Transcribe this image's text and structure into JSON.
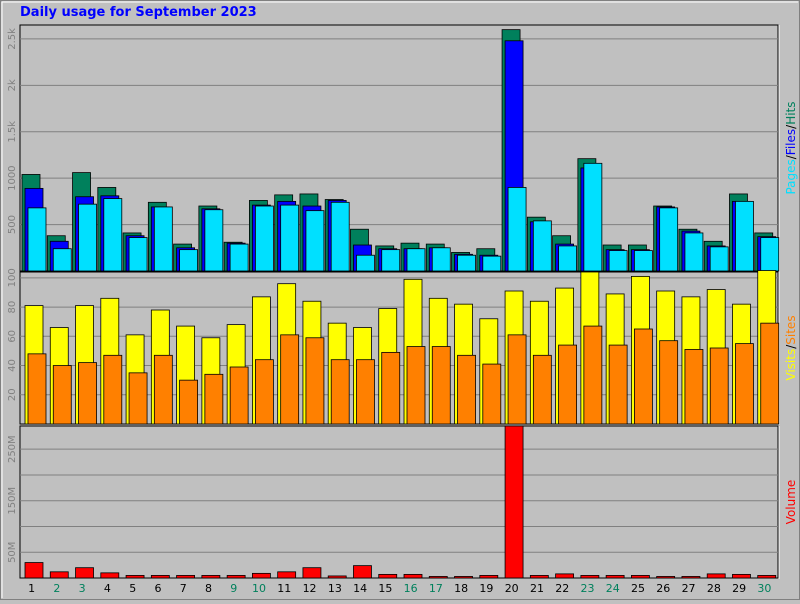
{
  "title": "Daily usage for September 2023",
  "colors": {
    "hits": "#00805c",
    "files": "#0000ff",
    "pages": "#00e0ff",
    "visits": "#ffff00",
    "sites": "#ff8000",
    "volume": "#ff0000",
    "weekend_label": "#00805c",
    "background": "#c0c0c0"
  },
  "chart_data": [
    {
      "type": "bar",
      "panel": "hits-files-pages",
      "legend": [
        {
          "text": "Pages",
          "color": "#00e0ff"
        },
        {
          "text": "/",
          "color": "#000000"
        },
        {
          "text": "Files",
          "color": "#0000ff"
        },
        {
          "text": "/",
          "color": "#000000"
        },
        {
          "text": "Hits",
          "color": "#00805c"
        }
      ],
      "ylim": [
        0,
        2650
      ],
      "yticks": [
        500,
        1000,
        1500,
        2000,
        2500
      ],
      "ytick_labels": [
        "500",
        "1000",
        "1.5k",
        "2k",
        "2.5k"
      ],
      "grid": true,
      "series": [
        {
          "name": "Hits",
          "values": [
            1040,
            380,
            1060,
            900,
            410,
            740,
            290,
            700,
            310,
            760,
            820,
            830,
            770,
            450,
            270,
            300,
            290,
            200,
            240,
            2600,
            580,
            380,
            1210,
            280,
            280,
            700,
            450,
            320,
            830,
            410
          ]
        },
        {
          "name": "Files",
          "values": [
            890,
            320,
            800,
            810,
            380,
            690,
            250,
            670,
            300,
            710,
            750,
            700,
            760,
            280,
            240,
            240,
            250,
            180,
            170,
            2480,
            530,
            290,
            1110,
            230,
            230,
            690,
            430,
            270,
            750,
            370
          ]
        },
        {
          "name": "Pages",
          "values": [
            680,
            240,
            720,
            780,
            360,
            690,
            230,
            660,
            290,
            700,
            710,
            650,
            740,
            170,
            230,
            240,
            250,
            170,
            160,
            900,
            540,
            270,
            1160,
            220,
            220,
            680,
            410,
            260,
            750,
            360
          ]
        }
      ]
    },
    {
      "type": "bar",
      "panel": "visits-sites",
      "legend": [
        {
          "text": "Visits",
          "color": "#ffff00"
        },
        {
          "text": "/",
          "color": "#000000"
        },
        {
          "text": "Sites",
          "color": "#ff8000"
        }
      ],
      "ylim": [
        0,
        104
      ],
      "yticks": [
        20,
        40,
        60,
        80,
        100
      ],
      "ytick_labels": [
        "20",
        "40",
        "60",
        "80",
        "100"
      ],
      "grid": true,
      "series": [
        {
          "name": "Visits",
          "values": [
            81,
            66,
            81,
            86,
            61,
            78,
            67,
            59,
            68,
            87,
            96,
            84,
            69,
            66,
            79,
            99,
            86,
            82,
            72,
            91,
            84,
            93,
            104,
            89,
            101,
            91,
            87,
            92,
            82,
            105
          ]
        },
        {
          "name": "Sites",
          "values": [
            48,
            40,
            42,
            47,
            35,
            47,
            30,
            34,
            39,
            44,
            61,
            59,
            44,
            44,
            49,
            53,
            53,
            47,
            41,
            61,
            47,
            54,
            67,
            54,
            65,
            57,
            51,
            52,
            55,
            69
          ]
        }
      ]
    },
    {
      "type": "bar",
      "panel": "volume",
      "legend": [
        {
          "text": "Volume",
          "color": "#ff0000"
        }
      ],
      "ylim": [
        0,
        295
      ],
      "yticks": [
        50,
        100,
        150,
        200,
        250
      ],
      "ytick_labels": [
        "50M",
        "",
        "150M",
        "",
        "250M"
      ],
      "grid": true,
      "series": [
        {
          "name": "Volume",
          "values": [
            30,
            12,
            20,
            10,
            5,
            5,
            5,
            5,
            5,
            9,
            12,
            20,
            4,
            24,
            7,
            7,
            3,
            3,
            5,
            295,
            5,
            8,
            5,
            5,
            5,
            3,
            3,
            8,
            7,
            5
          ]
        }
      ]
    }
  ],
  "days": [
    "1",
    "2",
    "3",
    "4",
    "5",
    "6",
    "7",
    "8",
    "9",
    "10",
    "11",
    "12",
    "13",
    "14",
    "15",
    "16",
    "17",
    "18",
    "19",
    "20",
    "21",
    "22",
    "23",
    "24",
    "25",
    "26",
    "27",
    "28",
    "29",
    "30"
  ],
  "weekend_days": [
    2,
    3,
    9,
    10,
    16,
    17,
    23,
    24,
    30
  ]
}
